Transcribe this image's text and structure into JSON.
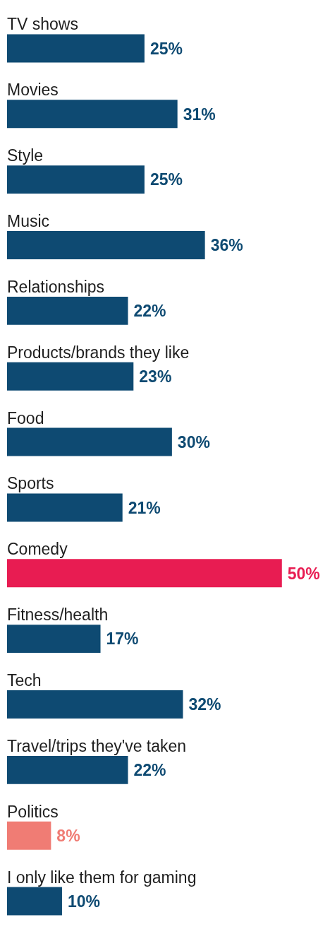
{
  "chart_data": {
    "type": "bar",
    "orientation": "horizontal",
    "categories": [
      "TV shows",
      "Movies",
      "Style",
      "Music",
      "Relationships",
      "Products/brands they like",
      "Food",
      "Sports",
      "Comedy",
      "Fitness/health",
      "Tech",
      "Travel/trips they've taken",
      "Politics",
      "I only like them for gaming"
    ],
    "values": [
      25,
      31,
      25,
      36,
      22,
      23,
      30,
      21,
      50,
      17,
      32,
      22,
      8,
      10
    ],
    "colors": [
      "#0e4a72",
      "#0e4a72",
      "#0e4a72",
      "#0e4a72",
      "#0e4a72",
      "#0e4a72",
      "#0e4a72",
      "#0e4a72",
      "#e81c52",
      "#0e4a72",
      "#0e4a72",
      "#0e4a72",
      "#f07c74",
      "#0e4a72"
    ],
    "value_labels": [
      "25%",
      "31%",
      "25%",
      "36%",
      "22%",
      "23%",
      "30%",
      "21%",
      "50%",
      "17%",
      "32%",
      "22%",
      "8%",
      "10%"
    ]
  }
}
